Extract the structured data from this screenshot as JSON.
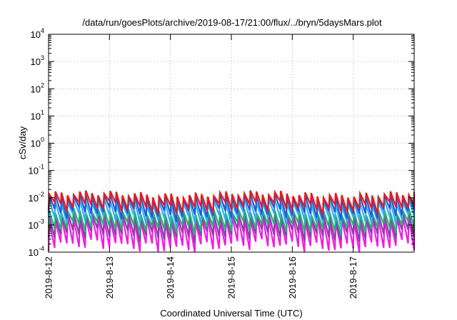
{
  "chart_data": {
    "type": "line",
    "title": "/data/run/goesPlots/archive/2019-08-17/21:00/flux/../bryn/5daysMars.plot",
    "xlabel": "Coordinated Universal Time (UTC)",
    "ylabel": "cSv/day",
    "x_ticks": [
      "2019-8-12",
      "2019-8-13",
      "2019-8-14",
      "2019-8-15",
      "2019-8-16",
      "2019-8-17"
    ],
    "xlim": [
      "2019-08-12T00:00",
      "2019-08-18T00:00"
    ],
    "y_scale": "log",
    "ylim": [
      0.0001,
      10000
    ],
    "y_ticks": [
      {
        "base": "10",
        "exp": "-4"
      },
      {
        "base": "10",
        "exp": "-3"
      },
      {
        "base": "10",
        "exp": "-2"
      },
      {
        "base": "10",
        "exp": "-1"
      },
      {
        "base": "10",
        "exp": "0"
      },
      {
        "base": "10",
        "exp": "1"
      },
      {
        "base": "10",
        "exp": "2"
      },
      {
        "base": "10",
        "exp": "3"
      },
      {
        "base": "10",
        "exp": "4"
      }
    ],
    "grid": true,
    "legend": "none",
    "sawtooth_period_hours": 2.4,
    "series": [
      {
        "color": "#e8191e",
        "peak": 0.0135,
        "trough": 0.0048
      },
      {
        "color": "#1e5bd9",
        "peak": 0.0105,
        "trough": 0.0028
      },
      {
        "color": "#35b0e6",
        "peak": 0.0068,
        "trough": 0.0017
      },
      {
        "color": "#27b07a",
        "peak": 0.003,
        "trough": 0.00085
      },
      {
        "color": "#8c3fa8",
        "peak": 0.0022,
        "trough": 0.00045
      },
      {
        "color": "#ee1ee0",
        "peak": 0.0016,
        "trough": 0.00018
      }
    ]
  }
}
